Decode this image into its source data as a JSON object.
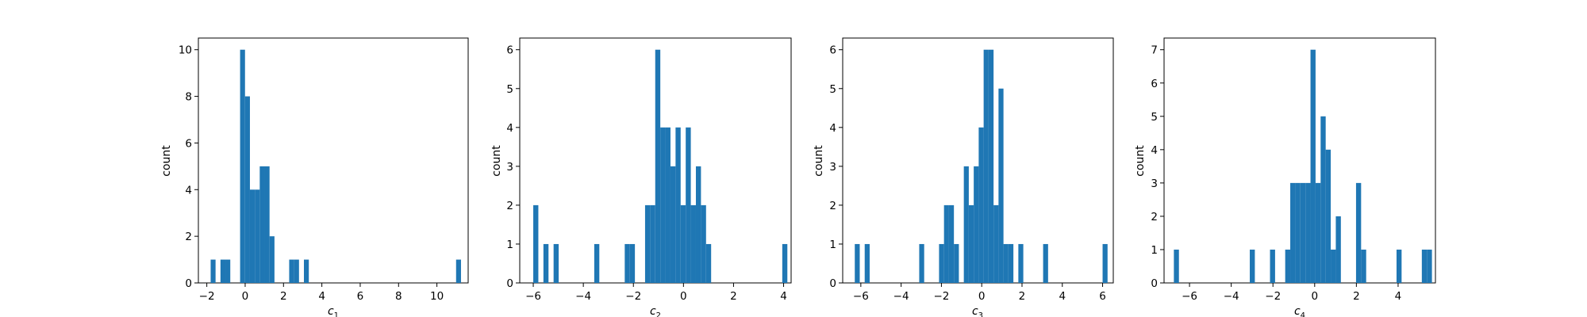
{
  "figure": {
    "background": "#ffffff"
  },
  "chart_data": [
    {
      "type": "bar",
      "xlabel_base": "c",
      "xlabel_sub": "1",
      "ylabel": "count",
      "xlim": [
        -2.44,
        11.63
      ],
      "ylim": [
        0,
        10.5
      ],
      "xticks": [
        -2,
        0,
        2,
        4,
        6,
        8,
        10
      ],
      "xtick_labels": [
        "−2",
        "0",
        "2",
        "4",
        "6",
        "8",
        "10"
      ],
      "yticks": [
        0,
        2,
        4,
        6,
        8,
        10
      ],
      "ytick_labels": [
        "0",
        "2",
        "4",
        "6",
        "8",
        "10"
      ],
      "bin_edges_start": -1.8,
      "bin_width": 0.256,
      "counts": [
        1,
        0,
        1,
        1,
        0,
        0,
        10,
        8,
        4,
        4,
        5,
        5,
        2,
        0,
        0,
        0,
        1,
        1,
        0,
        1,
        0,
        0,
        0,
        0,
        0,
        0,
        0,
        0,
        0,
        0,
        0,
        0,
        0,
        0,
        0,
        0,
        0,
        0,
        0,
        0,
        0,
        0,
        0,
        0,
        0,
        0,
        0,
        0,
        0,
        0,
        1
      ],
      "bar_color": "#1f77b4",
      "grid": false
    },
    {
      "type": "bar",
      "xlabel_base": "c",
      "xlabel_sub": "2",
      "ylabel": "count",
      "xlim": [
        -6.54,
        4.3
      ],
      "ylim": [
        0,
        6.3
      ],
      "xticks": [
        -6,
        -4,
        -2,
        0,
        2,
        4
      ],
      "xtick_labels": [
        "−6",
        "−4",
        "−2",
        "0",
        "2",
        "4"
      ],
      "yticks": [
        0,
        1,
        2,
        3,
        4,
        5,
        6
      ],
      "ytick_labels": [
        "0",
        "1",
        "2",
        "3",
        "4",
        "5",
        "6"
      ],
      "bin_edges_start": -6.0,
      "bin_width": 0.203,
      "counts": [
        2,
        0,
        1,
        0,
        1,
        0,
        0,
        0,
        0,
        0,
        0,
        0,
        1,
        0,
        0,
        0,
        0,
        0,
        1,
        1,
        0,
        0,
        2,
        2,
        6,
        4,
        4,
        3,
        4,
        2,
        4,
        2,
        3,
        2,
        1,
        0,
        0,
        0,
        0,
        0,
        0,
        0,
        0,
        0,
        0,
        0,
        0,
        0,
        0,
        1
      ],
      "bar_color": "#1f77b4",
      "grid": false
    },
    {
      "type": "bar",
      "xlabel_base": "c",
      "xlabel_sub": "3",
      "ylabel": "count",
      "xlim": [
        -6.9,
        6.53
      ],
      "ylim": [
        0,
        6.3
      ],
      "xticks": [
        -6,
        -4,
        -2,
        0,
        2,
        4,
        6
      ],
      "xtick_labels": [
        "−6",
        "−4",
        "−2",
        "0",
        "2",
        "4",
        "6"
      ],
      "yticks": [
        0,
        1,
        2,
        3,
        4,
        5,
        6
      ],
      "ytick_labels": [
        "0",
        "1",
        "2",
        "3",
        "4",
        "5",
        "6"
      ],
      "bin_edges_start": -6.3,
      "bin_width": 0.246,
      "counts": [
        1,
        0,
        1,
        0,
        0,
        0,
        0,
        0,
        0,
        0,
        0,
        0,
        0,
        1,
        0,
        0,
        0,
        1,
        2,
        2,
        1,
        0,
        3,
        2,
        3,
        4,
        6,
        6,
        2,
        5,
        1,
        1,
        0,
        1,
        0,
        0,
        0,
        0,
        1,
        0,
        0,
        0,
        0,
        0,
        0,
        0,
        0,
        0,
        0,
        0,
        1
      ],
      "bar_color": "#1f77b4",
      "grid": false
    },
    {
      "type": "bar",
      "xlabel_base": "c",
      "xlabel_sub": "4",
      "ylabel": "count",
      "xlim": [
        -7.22,
        5.79
      ],
      "ylim": [
        0,
        7.35
      ],
      "xticks": [
        -6,
        -4,
        -2,
        0,
        2,
        4
      ],
      "xtick_labels": [
        "−6",
        "−4",
        "−2",
        "0",
        "2",
        "4"
      ],
      "yticks": [
        0,
        1,
        2,
        3,
        4,
        5,
        6,
        7
      ],
      "ytick_labels": [
        "0",
        "1",
        "2",
        "3",
        "4",
        "5",
        "6",
        "7"
      ],
      "bin_edges_start": -6.75,
      "bin_width": 0.2426,
      "counts": [
        1,
        0,
        0,
        0,
        0,
        0,
        0,
        0,
        0,
        0,
        0,
        0,
        0,
        0,
        0,
        1,
        0,
        0,
        0,
        1,
        0,
        0,
        1,
        3,
        3,
        3,
        3,
        7,
        3,
        5,
        4,
        1,
        2,
        0,
        0,
        0,
        3,
        1,
        0,
        0,
        0,
        0,
        0,
        0,
        1,
        0,
        0,
        0,
        0,
        1,
        1
      ],
      "bar_color": "#1f77b4",
      "grid": false
    }
  ]
}
